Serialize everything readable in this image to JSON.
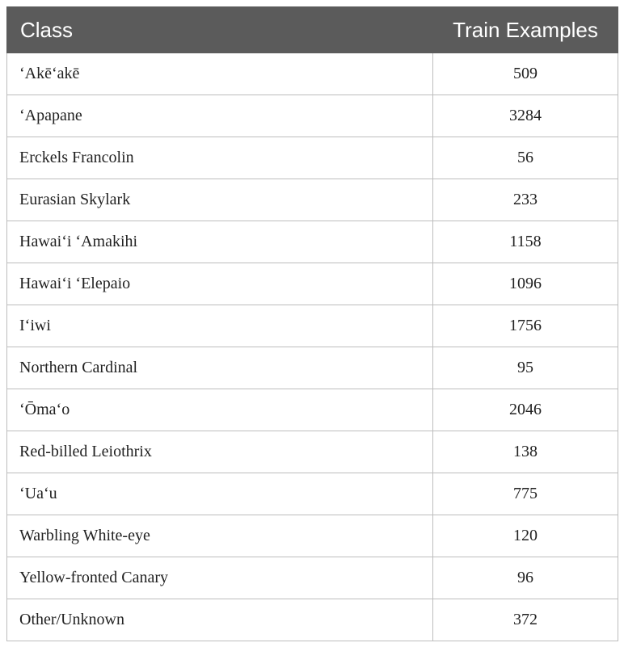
{
  "table": {
    "headers": {
      "class": "Class",
      "train": "Train Examples"
    },
    "rows": [
      {
        "class": "ʻAkēʻakē",
        "train": "509"
      },
      {
        "class": "ʻApapane",
        "train": "3284"
      },
      {
        "class": "Erckels Francolin",
        "train": "56"
      },
      {
        "class": "Eurasian Skylark",
        "train": "233"
      },
      {
        "class": "Hawaiʻi ʻAmakihi",
        "train": "1158"
      },
      {
        "class": "Hawaiʻi ʻElepaio",
        "train": "1096"
      },
      {
        "class": "Iʻiwi",
        "train": "1756"
      },
      {
        "class": "Northern Cardinal",
        "train": "95"
      },
      {
        "class": "ʻŌmaʻo",
        "train": "2046"
      },
      {
        "class": "Red-billed Leiothrix",
        "train": "138"
      },
      {
        "class": "ʻUaʻu",
        "train": "775"
      },
      {
        "class": "Warbling White-eye",
        "train": "120"
      },
      {
        "class": "Yellow-fronted Canary",
        "train": "96"
      },
      {
        "class": "Other/Unknown",
        "train": "372"
      }
    ]
  }
}
